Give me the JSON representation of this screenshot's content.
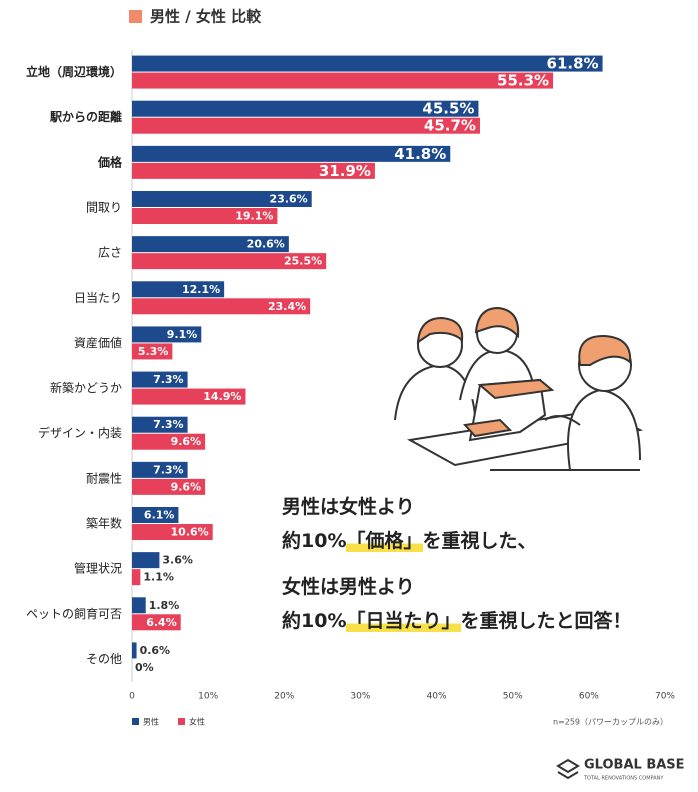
{
  "chart_data": {
    "type": "bar",
    "orientation": "horizontal",
    "title": "男性 / 女性 比較",
    "title_marker_color": "#f08a6a",
    "categories": [
      "立地（周辺環境）",
      "駅からの距離",
      "価格",
      "間取り",
      "広さ",
      "日当たり",
      "資産価値",
      "新築かどうか",
      "デザイン・内装",
      "耐震性",
      "築年数",
      "管理状況",
      "ペットの飼育可否",
      "その他"
    ],
    "series": [
      {
        "name": "男性",
        "color": "#1c4a8c",
        "values": [
          61.8,
          45.5,
          41.8,
          23.6,
          20.6,
          12.1,
          9.1,
          7.3,
          7.3,
          7.3,
          6.1,
          3.6,
          1.8,
          0.6
        ],
        "value_labels": [
          "61.8%",
          "45.5%",
          "41.8%",
          "23.6%",
          "20.6%",
          "12.1%",
          "9.1%",
          "7.3%",
          "7.3%",
          "7.3%",
          "6.1%",
          "3.6%",
          "1.8%",
          "0.6%"
        ]
      },
      {
        "name": "女性",
        "color": "#e6405a",
        "values": [
          55.3,
          45.7,
          31.9,
          19.1,
          25.5,
          23.4,
          5.3,
          14.9,
          9.6,
          9.6,
          10.6,
          1.1,
          6.4,
          0
        ],
        "value_labels": [
          "55.3%",
          "45.7%",
          "31.9%",
          "19.1%",
          "25.5%",
          "23.4%",
          "5.3%",
          "14.9%",
          "9.6%",
          "9.6%",
          "10.6%",
          "1.1%",
          "6.4%",
          "0%"
        ]
      }
    ],
    "xlim": [
      0,
      70
    ],
    "xticks": [
      0,
      {
        "value": 10,
        "label": "10%"
      },
      {
        "value": 20,
        "label": "20%"
      },
      {
        "value": 30,
        "label": "30%"
      },
      {
        "value": 40,
        "label": "40%"
      },
      {
        "value": 50,
        "label": "50%"
      },
      {
        "value": 60,
        "label": "60%"
      },
      {
        "value": 70,
        "label": "70%"
      }
    ],
    "grid": false,
    "legend": "bottom-left",
    "note": "n=259（パワーカップルのみ）",
    "annotations": [
      [
        "男性は女性より"
      ],
      [
        "約10%",
        "「価格」",
        "を重視した、"
      ],
      [
        "女性は男性より"
      ],
      [
        "約10%",
        "「日当たり」",
        "を重視したと回答！"
      ]
    ],
    "logo": {
      "name": "GLOBAL BASE",
      "tagline": "TOTAL RENOVATIONS COMPANY"
    }
  }
}
